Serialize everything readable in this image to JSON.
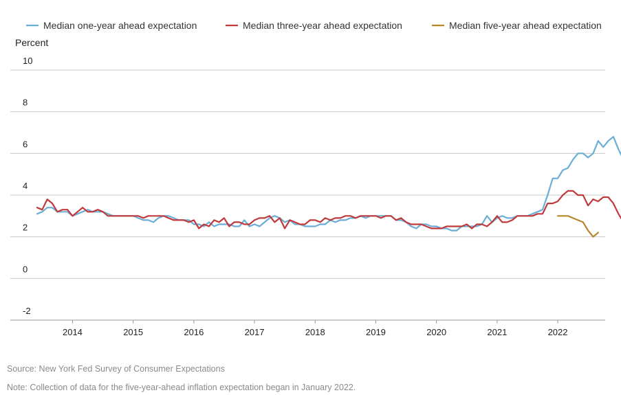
{
  "chart_data": {
    "type": "line",
    "ylabel": "Percent",
    "ylim": [
      -2,
      10
    ],
    "yticks": [
      10,
      8,
      6,
      4,
      2,
      0,
      -2
    ],
    "xlabels": [
      "2014",
      "2015",
      "2016",
      "2017",
      "2018",
      "2019",
      "2020",
      "2021",
      "2022"
    ],
    "x_start": "2013-06",
    "grid": "horizontal",
    "legend_position": "top",
    "series": [
      {
        "name": "Median one-year ahead expectation",
        "color": "#6aaed6",
        "start": "2013-06",
        "values": [
          3.1,
          3.2,
          3.4,
          3.4,
          3.2,
          3.2,
          3.2,
          3.0,
          3.1,
          3.2,
          3.3,
          3.2,
          3.2,
          3.2,
          3.1,
          3.0,
          3.0,
          3.0,
          3.0,
          3.0,
          2.9,
          2.8,
          2.8,
          2.7,
          2.9,
          3.0,
          3.0,
          2.9,
          2.8,
          2.8,
          2.8,
          2.6,
          2.6,
          2.5,
          2.7,
          2.5,
          2.6,
          2.6,
          2.6,
          2.5,
          2.5,
          2.8,
          2.5,
          2.6,
          2.5,
          2.7,
          2.9,
          3.0,
          2.9,
          2.7,
          2.8,
          2.6,
          2.6,
          2.5,
          2.5,
          2.5,
          2.6,
          2.6,
          2.8,
          2.7,
          2.8,
          2.8,
          2.9,
          2.9,
          3.0,
          2.9,
          3.0,
          3.0,
          3.0,
          3.0,
          3.0,
          2.8,
          2.8,
          2.7,
          2.5,
          2.4,
          2.6,
          2.6,
          2.5,
          2.5,
          2.4,
          2.4,
          2.3,
          2.3,
          2.5,
          2.5,
          2.5,
          2.5,
          2.6,
          3.0,
          2.7,
          2.9,
          3.0,
          2.9,
          2.9,
          3.0,
          3.0,
          3.0,
          3.1,
          3.2,
          3.3,
          4.0,
          4.8,
          4.8,
          5.2,
          5.3,
          5.7,
          6.0,
          6.0,
          5.8,
          6.0,
          6.6,
          6.3,
          6.6,
          6.8,
          6.2,
          5.7,
          5.4
        ]
      },
      {
        "name": "Median three-year ahead expectation",
        "color": "#c0393b",
        "start": "2013-06",
        "values": [
          3.4,
          3.3,
          3.8,
          3.6,
          3.2,
          3.3,
          3.3,
          3.0,
          3.2,
          3.4,
          3.2,
          3.2,
          3.3,
          3.2,
          3.0,
          3.0,
          3.0,
          3.0,
          3.0,
          3.0,
          3.0,
          2.9,
          3.0,
          3.0,
          3.0,
          3.0,
          2.9,
          2.8,
          2.8,
          2.8,
          2.7,
          2.8,
          2.4,
          2.6,
          2.5,
          2.8,
          2.7,
          2.9,
          2.5,
          2.7,
          2.7,
          2.6,
          2.6,
          2.8,
          2.9,
          2.9,
          3.0,
          2.7,
          2.9,
          2.4,
          2.8,
          2.7,
          2.6,
          2.6,
          2.8,
          2.8,
          2.7,
          2.9,
          2.8,
          2.9,
          2.9,
          3.0,
          3.0,
          2.9,
          3.0,
          3.0,
          3.0,
          3.0,
          2.9,
          3.0,
          3.0,
          2.8,
          2.9,
          2.7,
          2.6,
          2.6,
          2.6,
          2.5,
          2.4,
          2.4,
          2.4,
          2.5,
          2.5,
          2.5,
          2.5,
          2.6,
          2.4,
          2.6,
          2.6,
          2.5,
          2.7,
          3.0,
          2.7,
          2.7,
          2.8,
          3.0,
          3.0,
          3.0,
          3.0,
          3.1,
          3.1,
          3.6,
          3.6,
          3.7,
          4.0,
          4.2,
          4.2,
          4.0,
          4.0,
          3.5,
          3.8,
          3.7,
          3.9,
          3.9,
          3.6,
          3.1,
          2.7,
          2.9
        ]
      },
      {
        "name": "Median five-year ahead expectation",
        "color": "#b5862a",
        "start": "2022-01",
        "values": [
          3.0,
          3.0,
          3.0,
          2.9,
          2.8,
          2.7,
          2.3,
          2.0,
          2.2
        ]
      }
    ]
  },
  "notes": {
    "source": "Source: New York Fed Survey of Consumer Expectations",
    "note": "Note: Collection of data for the five-year-ahead inflation expectation began in January 2022."
  }
}
